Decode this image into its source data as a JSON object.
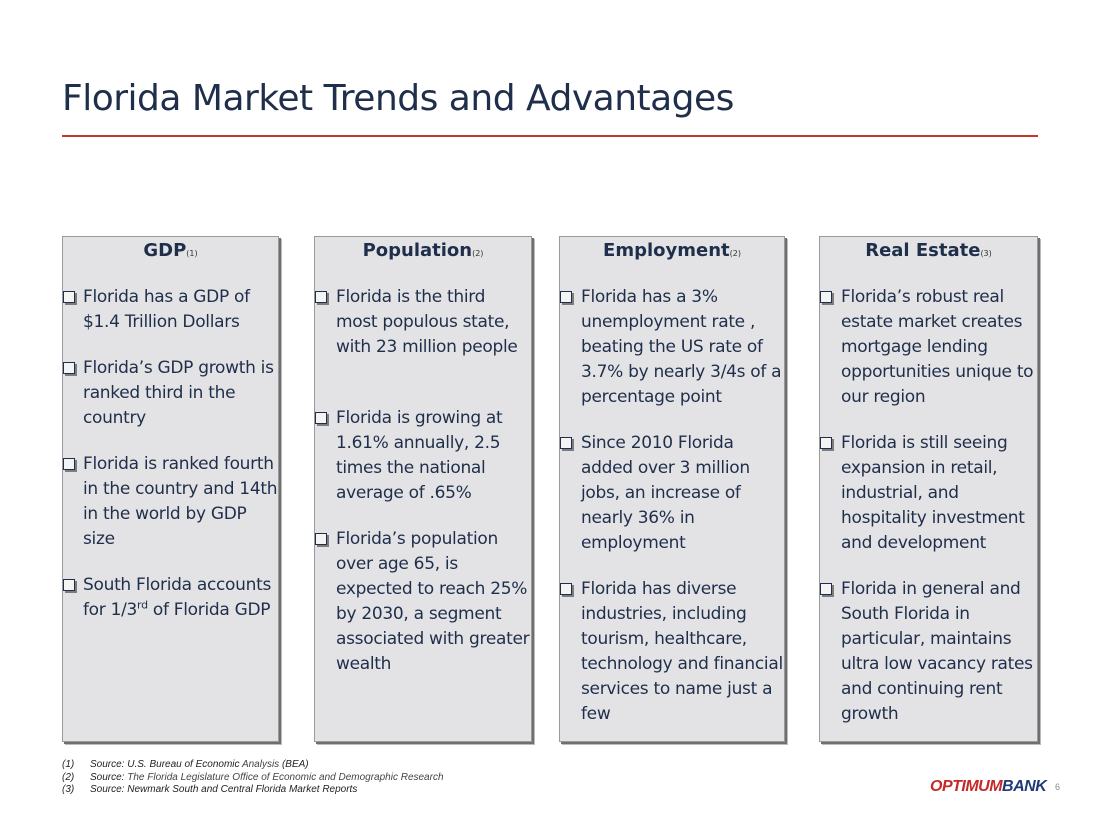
{
  "slide": {
    "title": "Florida Market Trends and Advantages",
    "page_number": "6",
    "accent_color": "#c0392b",
    "text_color": "#1f2e4a"
  },
  "cards": [
    {
      "header": "GDP",
      "ref": "(1)",
      "bullets": [
        "Florida has a GDP of $1.4 Trillion Dollars",
        "Florida’s GDP growth is ranked third in the country",
        "Florida is ranked fourth in the country and 14th in the world by GDP size",
        "South Florida accounts for 1/3",
        "rd",
        "of Florida GDP"
      ]
    },
    {
      "header": "Population",
      "ref": "(2)",
      "bullets": [
        "Florida is the third most populous state, with 23 million people",
        "Florida is growing at 1.61% annually, 2.5 times the national average of .65%",
        "Florida’s population over age 65, is expected to reach 25% by 2030, a segment associated with greater wealth"
      ]
    },
    {
      "header": "Employment",
      "ref": "(2)",
      "bullets": [
        "Florida has a 3% unemployment rate , beating the US rate of 3.7% by nearly 3/4s of a percentage point",
        "Since 2010 Florida added over 3 million jobs, an increase of nearly 36% in employment",
        "Florida has diverse industries, including tourism, healthcare, technology and financial services to name just a few"
      ]
    },
    {
      "header": "Real Estate",
      "ref": "(3)",
      "bullets": [
        "Florida’s robust real estate market creates mortgage lending opportunities unique to our region",
        "Florida is still seeing expansion in retail, industrial, and hospitality investment and development",
        "Florida in general and South Florida in particular, maintains ultra low vacancy rates and continuing rent growth"
      ]
    }
  ],
  "footnotes": [
    {
      "num": "(1)",
      "source": "Source: U.S. Bureau of Economic ",
      "detail": "Analysis",
      "tail": " (BEA)"
    },
    {
      "num": "(2)",
      "source": "Source: ",
      "detail": "The Florida Legislature Office of Economic and Demographic Research",
      "tail": ""
    },
    {
      "num": "(3)",
      "source": "Source: Newmark South and Central Florida Market Reports",
      "detail": "",
      "tail": ""
    }
  ],
  "logo": {
    "part1": "OPTIMUM",
    "part2": "BANK",
    "red": "#c62828",
    "blue": "#1f3a78"
  }
}
